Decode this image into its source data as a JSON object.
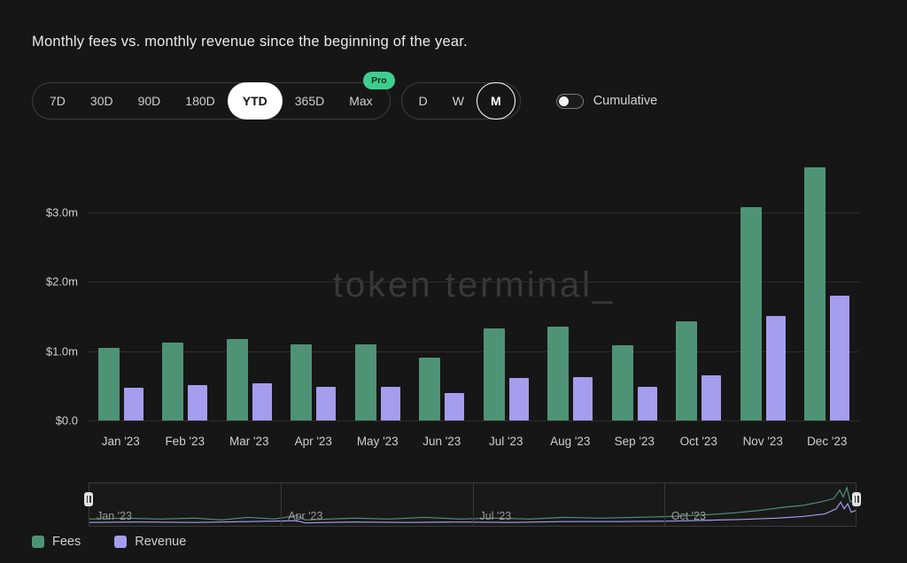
{
  "header": {
    "title": "Monthly fees vs. monthly revenue since the beginning of the year."
  },
  "controls": {
    "ranges": [
      "7D",
      "30D",
      "90D",
      "180D",
      "YTD",
      "365D",
      "Max"
    ],
    "active_range": "YTD",
    "pro_badge": "Pro",
    "granularities": [
      "D",
      "W",
      "M"
    ],
    "active_granularity": "M",
    "cumulative": {
      "label": "Cumulative",
      "enabled": false
    }
  },
  "watermark": "token terminal_",
  "chart_data": {
    "type": "bar",
    "title": "Monthly fees vs. monthly revenue since the beginning of the year.",
    "categories": [
      "Jan '23",
      "Feb '23",
      "Mar '23",
      "Apr '23",
      "May '23",
      "Jun '23",
      "Jul '23",
      "Aug '23",
      "Sep '23",
      "Oct '23",
      "Nov '23",
      "Dec '23"
    ],
    "series": [
      {
        "name": "Fees",
        "color": "#4f9376",
        "values": [
          1.05,
          1.12,
          1.17,
          1.1,
          1.1,
          0.91,
          1.33,
          1.35,
          1.09,
          1.43,
          3.08,
          3.65
        ]
      },
      {
        "name": "Revenue",
        "color": "#a59ded",
        "values": [
          0.47,
          0.51,
          0.54,
          0.49,
          0.48,
          0.39,
          0.61,
          0.62,
          0.48,
          0.65,
          1.5,
          1.8
        ]
      }
    ],
    "xlabel": "",
    "ylabel": "",
    "unit": "USD millions",
    "yticks": [
      3.0,
      2.0,
      1.0,
      0.0
    ],
    "ytick_labels": [
      "$3.0m",
      "$2.0m",
      "$1.0m",
      "$0.0"
    ],
    "ylim": [
      0,
      3.7
    ],
    "grid": true,
    "legend_position": "bottom-left"
  },
  "minimap": {
    "labels": [
      "Jan '23",
      "Apr '23",
      "Jul '23",
      "Oct '23"
    ]
  },
  "legend": [
    {
      "label": "Fees",
      "color": "#4f9376"
    },
    {
      "label": "Revenue",
      "color": "#a59ded"
    }
  ],
  "colors": {
    "background": "#161616",
    "gridline": "#2d2d2d",
    "fees": "#4f9376",
    "revenue": "#a59ded",
    "pro_badge": "#3ecf8e",
    "active_pill": "#ffffff"
  }
}
